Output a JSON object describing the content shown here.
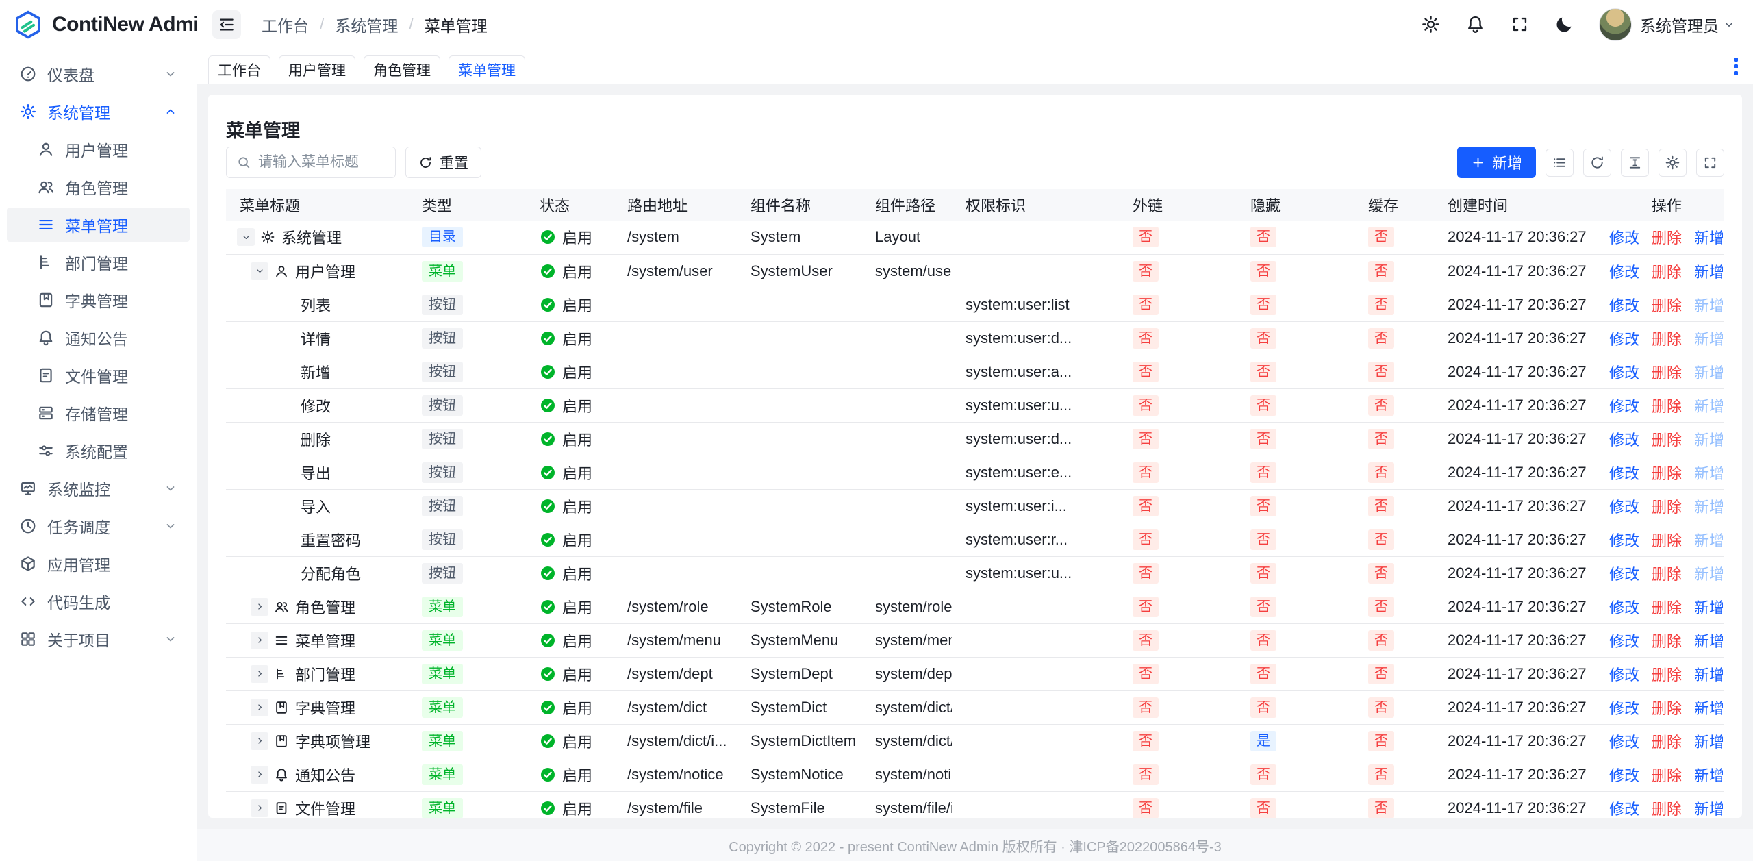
{
  "app": {
    "logo_text": "ContiNew Admin"
  },
  "colors": {
    "primary": "#165dff",
    "success": "#00b42a",
    "danger": "#f53f3f"
  },
  "header": {
    "breadcrumb": [
      "工作台",
      "系统管理",
      "菜单管理"
    ],
    "user_name": "系统管理员",
    "action_icons": [
      "settings",
      "notifications",
      "fullscreen",
      "dark-mode"
    ]
  },
  "tabs": {
    "items": [
      {
        "key": "workbench",
        "label": "工作台",
        "active": false
      },
      {
        "key": "user-management",
        "label": "用户管理",
        "active": false
      },
      {
        "key": "role-management",
        "label": "角色管理",
        "active": false
      },
      {
        "key": "menu-management",
        "label": "菜单管理",
        "active": true
      }
    ]
  },
  "sidebar": {
    "items": [
      {
        "key": "dashboard",
        "icon": "dashboard",
        "label": "仪表盘",
        "chevron": "down"
      },
      {
        "key": "system-management",
        "icon": "gear",
        "label": "系统管理",
        "chevron": "up",
        "active": true,
        "children": [
          {
            "key": "user-management",
            "icon": "user",
            "label": "用户管理"
          },
          {
            "key": "role-management",
            "icon": "users",
            "label": "角色管理"
          },
          {
            "key": "menu-management",
            "icon": "menu",
            "label": "菜单管理",
            "active": true
          },
          {
            "key": "dept-management",
            "icon": "tree",
            "label": "部门管理"
          },
          {
            "key": "dict-management",
            "icon": "book",
            "label": "字典管理"
          },
          {
            "key": "notice",
            "icon": "bell",
            "label": "通知公告"
          },
          {
            "key": "file-management",
            "icon": "file",
            "label": "文件管理"
          },
          {
            "key": "storage-management",
            "icon": "storage",
            "label": "存储管理"
          },
          {
            "key": "system-config",
            "icon": "sliders",
            "label": "系统配置"
          }
        ]
      },
      {
        "key": "system-monitor",
        "icon": "monitor",
        "label": "系统监控",
        "chevron": "down"
      },
      {
        "key": "task-schedule",
        "icon": "clock",
        "label": "任务调度",
        "chevron": "down"
      },
      {
        "key": "app-management",
        "icon": "box",
        "label": "应用管理"
      },
      {
        "key": "code-generation",
        "icon": "code",
        "label": "代码生成"
      },
      {
        "key": "about-project",
        "icon": "grid",
        "label": "关于项目",
        "chevron": "down"
      }
    ]
  },
  "page": {
    "title": "菜单管理",
    "search_placeholder": "请输入菜单标题",
    "reset_label": "重置",
    "add_label": "新增"
  },
  "table": {
    "columns": [
      "菜单标题",
      "类型",
      "状态",
      "路由地址",
      "组件名称",
      "组件路径",
      "权限标识",
      "外链",
      "隐藏",
      "缓存",
      "创建时间",
      "操作"
    ],
    "status_enabled": "启用",
    "ops": {
      "modify": "修改",
      "remove": "删除",
      "add": "新增"
    },
    "rows": [
      {
        "level": 1,
        "expand": "down",
        "icon": "gear",
        "title": "系统管理",
        "type": "目录",
        "route": "/system",
        "component": "System",
        "path": "Layout",
        "perm": "",
        "external": "否",
        "hidden": "否",
        "cache": "否",
        "created": "2024-11-17 20:36:27",
        "add_disabled": false
      },
      {
        "level": 2,
        "expand": "down",
        "icon": "user",
        "title": "用户管理",
        "type": "菜单",
        "route": "/system/user",
        "component": "SystemUser",
        "path": "system/user/i...",
        "perm": "",
        "external": "否",
        "hidden": "否",
        "cache": "否",
        "created": "2024-11-17 20:36:27",
        "add_disabled": false
      },
      {
        "level": 3,
        "expand": null,
        "icon": null,
        "title": "列表",
        "type": "按钮",
        "route": "",
        "component": "",
        "path": "",
        "perm": "system:user:list",
        "external": "否",
        "hidden": "否",
        "cache": "否",
        "created": "2024-11-17 20:36:27",
        "add_disabled": true
      },
      {
        "level": 3,
        "expand": null,
        "icon": null,
        "title": "详情",
        "type": "按钮",
        "route": "",
        "component": "",
        "path": "",
        "perm": "system:user:d...",
        "external": "否",
        "hidden": "否",
        "cache": "否",
        "created": "2024-11-17 20:36:27",
        "add_disabled": true
      },
      {
        "level": 3,
        "expand": null,
        "icon": null,
        "title": "新增",
        "type": "按钮",
        "route": "",
        "component": "",
        "path": "",
        "perm": "system:user:a...",
        "external": "否",
        "hidden": "否",
        "cache": "否",
        "created": "2024-11-17 20:36:27",
        "add_disabled": true
      },
      {
        "level": 3,
        "expand": null,
        "icon": null,
        "title": "修改",
        "type": "按钮",
        "route": "",
        "component": "",
        "path": "",
        "perm": "system:user:u...",
        "external": "否",
        "hidden": "否",
        "cache": "否",
        "created": "2024-11-17 20:36:27",
        "add_disabled": true
      },
      {
        "level": 3,
        "expand": null,
        "icon": null,
        "title": "删除",
        "type": "按钮",
        "route": "",
        "component": "",
        "path": "",
        "perm": "system:user:d...",
        "external": "否",
        "hidden": "否",
        "cache": "否",
        "created": "2024-11-17 20:36:27",
        "add_disabled": true
      },
      {
        "level": 3,
        "expand": null,
        "icon": null,
        "title": "导出",
        "type": "按钮",
        "route": "",
        "component": "",
        "path": "",
        "perm": "system:user:e...",
        "external": "否",
        "hidden": "否",
        "cache": "否",
        "created": "2024-11-17 20:36:27",
        "add_disabled": true
      },
      {
        "level": 3,
        "expand": null,
        "icon": null,
        "title": "导入",
        "type": "按钮",
        "route": "",
        "component": "",
        "path": "",
        "perm": "system:user:i...",
        "external": "否",
        "hidden": "否",
        "cache": "否",
        "created": "2024-11-17 20:36:27",
        "add_disabled": true
      },
      {
        "level": 3,
        "expand": null,
        "icon": null,
        "title": "重置密码",
        "type": "按钮",
        "route": "",
        "component": "",
        "path": "",
        "perm": "system:user:r...",
        "external": "否",
        "hidden": "否",
        "cache": "否",
        "created": "2024-11-17 20:36:27",
        "add_disabled": true
      },
      {
        "level": 3,
        "expand": null,
        "icon": null,
        "title": "分配角色",
        "type": "按钮",
        "route": "",
        "component": "",
        "path": "",
        "perm": "system:user:u...",
        "external": "否",
        "hidden": "否",
        "cache": "否",
        "created": "2024-11-17 20:36:27",
        "add_disabled": true
      },
      {
        "level": 2,
        "expand": "right",
        "icon": "users",
        "title": "角色管理",
        "type": "菜单",
        "route": "/system/role",
        "component": "SystemRole",
        "path": "system/role/i...",
        "perm": "",
        "external": "否",
        "hidden": "否",
        "cache": "否",
        "created": "2024-11-17 20:36:27",
        "add_disabled": false
      },
      {
        "level": 2,
        "expand": "right",
        "icon": "menu",
        "title": "菜单管理",
        "type": "菜单",
        "route": "/system/menu",
        "component": "SystemMenu",
        "path": "system/menu...",
        "perm": "",
        "external": "否",
        "hidden": "否",
        "cache": "否",
        "created": "2024-11-17 20:36:27",
        "add_disabled": false
      },
      {
        "level": 2,
        "expand": "right",
        "icon": "tree",
        "title": "部门管理",
        "type": "菜单",
        "route": "/system/dept",
        "component": "SystemDept",
        "path": "system/dept/i...",
        "perm": "",
        "external": "否",
        "hidden": "否",
        "cache": "否",
        "created": "2024-11-17 20:36:27",
        "add_disabled": false
      },
      {
        "level": 2,
        "expand": "right",
        "icon": "book",
        "title": "字典管理",
        "type": "菜单",
        "route": "/system/dict",
        "component": "SystemDict",
        "path": "system/dict/i...",
        "perm": "",
        "external": "否",
        "hidden": "否",
        "cache": "否",
        "created": "2024-11-17 20:36:27",
        "add_disabled": false
      },
      {
        "level": 2,
        "expand": "right",
        "icon": "book",
        "title": "字典项管理",
        "type": "菜单",
        "route": "/system/dict/i...",
        "component": "SystemDictItem",
        "path": "system/dict/it...",
        "perm": "",
        "external": "否",
        "hidden": "是",
        "cache": "否",
        "created": "2024-11-17 20:36:27",
        "add_disabled": false
      },
      {
        "level": 2,
        "expand": "right",
        "icon": "bell",
        "title": "通知公告",
        "type": "菜单",
        "route": "/system/notice",
        "component": "SystemNotice",
        "path": "system/notice...",
        "perm": "",
        "external": "否",
        "hidden": "否",
        "cache": "否",
        "created": "2024-11-17 20:36:27",
        "add_disabled": false
      },
      {
        "level": 2,
        "expand": "right",
        "icon": "file",
        "title": "文件管理",
        "type": "菜单",
        "route": "/system/file",
        "component": "SystemFile",
        "path": "system/file/in",
        "perm": "",
        "external": "否",
        "hidden": "否",
        "cache": "否",
        "created": "2024-11-17 20:36:27",
        "add_disabled": false
      }
    ]
  },
  "footer": {
    "copyright": "Copyright © 2022 - present ContiNew Admin 版权所有 · 津ICP备2022005864号-3"
  }
}
